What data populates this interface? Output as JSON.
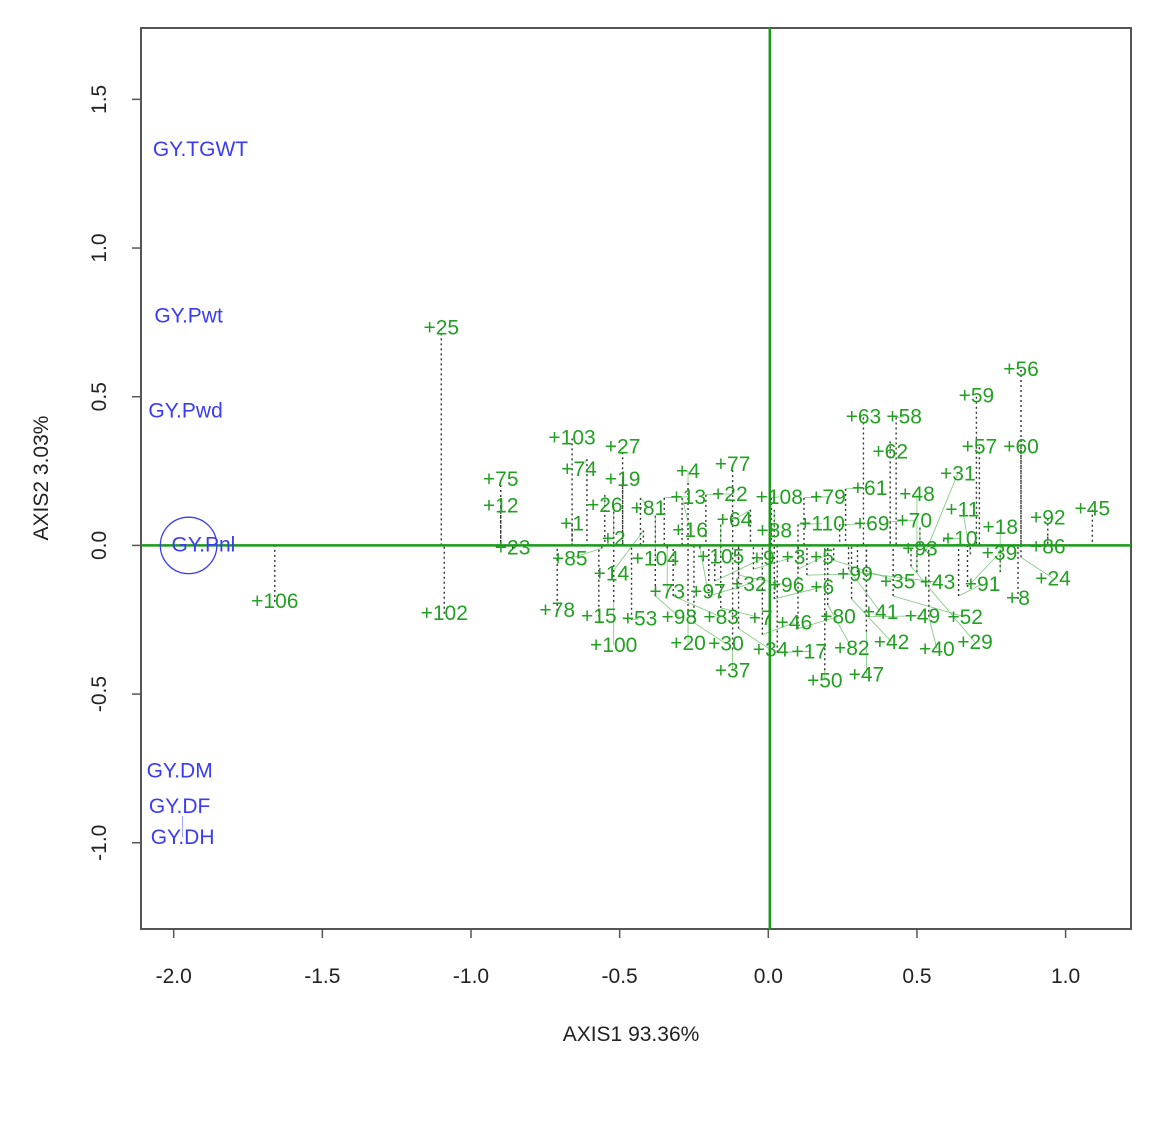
{
  "chart_data": {
    "type": "scatter",
    "title": "",
    "xlabel": "AXIS1 93.36%",
    "ylabel": "AXIS2 3.03%",
    "xlim": [
      -2.11,
      1.22
    ],
    "ylim": [
      -1.29,
      1.74
    ],
    "xticks": [
      -2.0,
      -1.5,
      -1.0,
      -0.5,
      0.0,
      0.5,
      1.0
    ],
    "xtick_labels": [
      "-2.0",
      "-1.5",
      "-1.0",
      "-0.5",
      "0.0",
      "0.5",
      "1.0"
    ],
    "yticks": [
      -1.0,
      -0.5,
      0.0,
      0.5,
      1.0,
      1.5
    ],
    "ytick_labels": [
      "-1.0",
      "-0.5",
      "0.0",
      "0.5",
      "1.0",
      "1.5"
    ],
    "grid": false,
    "colors": {
      "points": "#22a022",
      "variables": "#3b3bf5",
      "axes_lines": "#1a9a1a"
    },
    "variables": [
      {
        "label": "GY.TGWT",
        "x": -1.91,
        "y": 1.33
      },
      {
        "label": "GY.Pwt",
        "x": -1.95,
        "y": 0.77
      },
      {
        "label": "GY.Pwd",
        "x": -1.96,
        "y": 0.45
      },
      {
        "label": "GY.Pnl",
        "x": -1.9,
        "y": 0.0
      },
      {
        "label": "GY.DM",
        "x": -1.98,
        "y": -0.76
      },
      {
        "label": "GY.DF",
        "x": -1.98,
        "y": -0.88
      },
      {
        "label": "GY.DH",
        "x": -1.97,
        "y": -0.91
      }
    ],
    "circle": {
      "x": -1.95,
      "y": 0.0,
      "r": 0.095
    },
    "points": [
      {
        "label": "+25",
        "x": -1.1,
        "y": 0.73
      },
      {
        "label": "+103",
        "x": -0.66,
        "y": 0.36
      },
      {
        "label": "+27",
        "x": -0.49,
        "y": 0.33
      },
      {
        "label": "+74",
        "x": -0.61,
        "y": 0.29
      },
      {
        "label": "+75",
        "x": -0.9,
        "y": 0.22
      },
      {
        "label": "+19",
        "x": -0.49,
        "y": 0.22
      },
      {
        "label": "+12",
        "x": -0.9,
        "y": 0.13
      },
      {
        "label": "+26",
        "x": -0.55,
        "y": 0.17
      },
      {
        "label": "+81",
        "x": -0.43,
        "y": 0.16
      },
      {
        "label": "+2",
        "x": -0.52,
        "y": 0.13
      },
      {
        "label": "+13",
        "x": -0.35,
        "y": 0.16
      },
      {
        "label": "+16",
        "x": -0.29,
        "y": 0.16
      },
      {
        "label": "+4",
        "x": -0.27,
        "y": 0.21
      },
      {
        "label": "+22",
        "x": -0.21,
        "y": 0.17
      },
      {
        "label": "+77",
        "x": -0.12,
        "y": 0.27
      },
      {
        "label": "+108",
        "x": 0.01,
        "y": 0.16
      },
      {
        "label": "+64",
        "x": -0.06,
        "y": 0.12
      },
      {
        "label": "+88",
        "x": 0.02,
        "y": 0.12
      },
      {
        "label": "+79",
        "x": 0.12,
        "y": 0.16
      },
      {
        "label": "+61",
        "x": 0.26,
        "y": 0.19
      },
      {
        "label": "+110",
        "x": 0.1,
        "y": 0.07
      },
      {
        "label": "+69",
        "x": 0.24,
        "y": 0.07
      },
      {
        "label": "+70",
        "x": 0.41,
        "y": 0.08
      },
      {
        "label": "+93",
        "x": 0.51,
        "y": 0.06
      },
      {
        "label": "+10",
        "x": 0.59,
        "y": 0.02
      },
      {
        "label": "+63",
        "x": 0.32,
        "y": 0.43
      },
      {
        "label": "+58",
        "x": 0.43,
        "y": 0.43
      },
      {
        "label": "+62",
        "x": 0.41,
        "y": 0.35
      },
      {
        "label": "+59",
        "x": 0.7,
        "y": 0.5
      },
      {
        "label": "+56",
        "x": 0.85,
        "y": 0.59
      },
      {
        "label": "+57",
        "x": 0.71,
        "y": 0.33
      },
      {
        "label": "+60",
        "x": 0.85,
        "y": 0.33
      },
      {
        "label": "+92",
        "x": 0.94,
        "y": 0.09
      },
      {
        "label": "+86",
        "x": 0.94,
        "y": 0.03
      },
      {
        "label": "+45",
        "x": 1.09,
        "y": 0.12
      },
      {
        "label": "+1",
        "x": -0.66,
        "y": 0.07
      },
      {
        "label": "+105",
        "x": -0.16,
        "y": 0.07
      },
      {
        "label": "+104",
        "x": -0.38,
        "y": 0.1
      },
      {
        "label": "+14",
        "x": -0.42,
        "y": 0.05
      },
      {
        "label": "+23",
        "x": -0.86,
        "y": -0.01
      },
      {
        "label": "+85",
        "x": -0.56,
        "y": -0.01
      },
      {
        "label": "+73",
        "x": -0.34,
        "y": -0.01
      },
      {
        "label": "+97",
        "x": -0.23,
        "y": -0.01
      },
      {
        "label": "+106",
        "x": -1.66,
        "y": -0.19
      },
      {
        "label": "+102",
        "x": -1.09,
        "y": -0.23
      },
      {
        "label": "+78",
        "x": -0.71,
        "y": -0.22
      },
      {
        "label": "+15",
        "x": -0.57,
        "y": -0.24
      },
      {
        "label": "+53",
        "x": -0.46,
        "y": -0.25
      },
      {
        "label": "+100",
        "x": -0.52,
        "y": -0.19
      },
      {
        "label": "+98",
        "x": -0.38,
        "y": -0.17
      },
      {
        "label": "+83",
        "x": -0.32,
        "y": -0.17
      },
      {
        "label": "+32",
        "x": -0.2,
        "y": -0.17
      },
      {
        "label": "+20",
        "x": -0.27,
        "y": -0.22
      },
      {
        "label": "+30",
        "x": -0.25,
        "y": -0.26
      },
      {
        "label": "+7",
        "x": -0.16,
        "y": -0.21
      },
      {
        "label": "+9",
        "x": -0.18,
        "y": -0.12
      },
      {
        "label": "+96",
        "x": -0.1,
        "y": -0.1
      },
      {
        "label": "+3",
        "x": -0.05,
        "y": -0.08
      },
      {
        "label": "+34",
        "x": -0.1,
        "y": -0.28
      },
      {
        "label": "+37",
        "x": -0.12,
        "y": -0.35
      },
      {
        "label": "+17",
        "x": 0.03,
        "y": -0.36
      },
      {
        "label": "+46",
        "x": -0.02,
        "y": -0.3
      },
      {
        "label": "+80",
        "x": 0.1,
        "y": -0.28
      },
      {
        "label": "+6",
        "x": 0.02,
        "y": -0.18
      },
      {
        "label": "+5",
        "x": 0.1,
        "y": -0.08
      },
      {
        "label": "+99",
        "x": 0.13,
        "y": -0.1
      },
      {
        "label": "+35",
        "x": 0.22,
        "y": -0.05
      },
      {
        "label": "+41",
        "x": 0.27,
        "y": -0.08
      },
      {
        "label": "+43",
        "x": 0.3,
        "y": -0.09
      },
      {
        "label": "+50",
        "x": 0.19,
        "y": -0.42
      },
      {
        "label": "+82",
        "x": 0.2,
        "y": -0.2
      },
      {
        "label": "+42",
        "x": 0.28,
        "y": -0.18
      },
      {
        "label": "+49",
        "x": 0.33,
        "y": -0.24
      },
      {
        "label": "+47",
        "x": 0.33,
        "y": -0.29
      },
      {
        "label": "+52",
        "x": 0.42,
        "y": -0.17
      },
      {
        "label": "+40",
        "x": 0.54,
        "y": -0.24
      },
      {
        "label": "+91",
        "x": 0.64,
        "y": -0.17
      },
      {
        "label": "+39",
        "x": 0.67,
        "y": -0.14
      },
      {
        "label": "+8",
        "x": 0.84,
        "y": -0.18
      },
      {
        "label": "+18",
        "x": 0.78,
        "y": -0.09
      },
      {
        "label": "+11",
        "x": 0.68,
        "y": -0.03
      },
      {
        "label": "+24",
        "x": 0.85,
        "y": -0.04
      },
      {
        "label": "+48",
        "x": 0.5,
        "y": -0.09
      },
      {
        "label": "+29",
        "x": 0.48,
        "y": -0.07
      },
      {
        "label": "+31",
        "x": 0.53,
        "y": -0.02
      }
    ]
  }
}
